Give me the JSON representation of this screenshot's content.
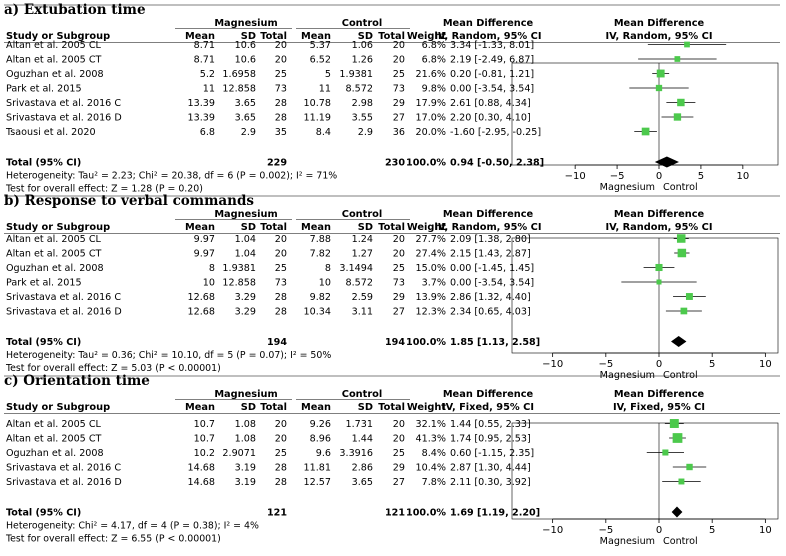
{
  "chart_data": [
    {
      "type": "forest",
      "title": "a) Extubation time",
      "group_labels": [
        "Magnesium",
        "Control"
      ],
      "columns": [
        "Study or Subgroup",
        "Mean",
        "SD",
        "Total",
        "Mean",
        "SD",
        "Total",
        "Weight",
        "Mean Difference",
        "Mean Difference"
      ],
      "md_header_line1": "Mean Difference",
      "md_header_line2": "IV, Random, 95% CI",
      "studies": [
        {
          "study": "Altan et al. 2005 CL",
          "mg_mean": "8.71",
          "mg_sd": "10.6",
          "mg_total": "20",
          "ctrl_mean": "5.37",
          "ctrl_sd": "1.06",
          "ctrl_total": "20",
          "weight": "6.8%",
          "ci_text": "3.34 [-1.33, 8.01]",
          "md": 3.34,
          "lo": -1.33,
          "hi": 8.01,
          "w": 6.8
        },
        {
          "study": "Altan et al. 2005 CT",
          "mg_mean": "8.71",
          "mg_sd": "10.6",
          "mg_total": "20",
          "ctrl_mean": "6.52",
          "ctrl_sd": "1.26",
          "ctrl_total": "20",
          "weight": "6.8%",
          "ci_text": "2.19 [-2.49, 6.87]",
          "md": 2.19,
          "lo": -2.49,
          "hi": 6.87,
          "w": 6.8
        },
        {
          "study": "Oguzhan et al. 2008",
          "mg_mean": "5.2",
          "mg_sd": "1.6958",
          "mg_total": "25",
          "ctrl_mean": "5",
          "ctrl_sd": "1.9381",
          "ctrl_total": "25",
          "weight": "21.6%",
          "ci_text": "0.20 [-0.81, 1.21]",
          "md": 0.2,
          "lo": -0.81,
          "hi": 1.21,
          "w": 21.6
        },
        {
          "study": "Park et al. 2015",
          "mg_mean": "11",
          "mg_sd": "12.858",
          "mg_total": "73",
          "ctrl_mean": "11",
          "ctrl_sd": "8.572",
          "ctrl_total": "73",
          "weight": "9.8%",
          "ci_text": "0.00 [-3.54, 3.54]",
          "md": 0.0,
          "lo": -3.54,
          "hi": 3.54,
          "w": 9.8
        },
        {
          "study": "Srivastava et al. 2016 C",
          "mg_mean": "13.39",
          "mg_sd": "3.65",
          "mg_total": "28",
          "ctrl_mean": "10.78",
          "ctrl_sd": "2.98",
          "ctrl_total": "29",
          "weight": "17.9%",
          "ci_text": "2.61 [0.88, 4.34]",
          "md": 2.61,
          "lo": 0.88,
          "hi": 4.34,
          "w": 17.9
        },
        {
          "study": "Srivastava et al. 2016 D",
          "mg_mean": "13.39",
          "mg_sd": "3.65",
          "mg_total": "28",
          "ctrl_mean": "11.19",
          "ctrl_sd": "3.55",
          "ctrl_total": "27",
          "weight": "17.0%",
          "ci_text": "2.20 [0.30, 4.10]",
          "md": 2.2,
          "lo": 0.3,
          "hi": 4.1,
          "w": 17.0
        },
        {
          "study": "Tsaousi et al. 2020",
          "mg_mean": "6.8",
          "mg_sd": "2.9",
          "mg_total": "35",
          "ctrl_mean": "8.4",
          "ctrl_sd": "2.9",
          "ctrl_total": "36",
          "weight": "20.0%",
          "ci_text": "-1.60 [-2.95, -0.25]",
          "md": -1.6,
          "lo": -2.95,
          "hi": -0.25,
          "w": 20.0
        }
      ],
      "total": {
        "label": "Total (95% CI)",
        "mg_total": "229",
        "ctrl_total": "230",
        "weight": "100.0%",
        "ci_text": "0.94 [-0.50, 2.38]",
        "md": 0.94,
        "lo": -0.5,
        "hi": 2.38
      },
      "heterogeneity": "Heterogeneity: Tau² = 2.23; Chi² = 20.38, df = 6 (P = 0.002); I² = 71%",
      "overall_effect": "Test for overall effect: Z = 1.28 (P = 0.20)",
      "xlim": [
        -13,
        13
      ],
      "xticks": [
        -10,
        -5,
        0,
        5,
        10
      ],
      "xtick_labels": [
        "−10",
        "−5",
        "0",
        "5",
        "10"
      ],
      "favours_left": "Magnesium",
      "favours_right": "Control"
    },
    {
      "type": "forest",
      "title": "b) Response to verbal commands",
      "group_labels": [
        "Magnesium",
        "Control"
      ],
      "columns": [
        "Study or Subgroup",
        "Mean",
        "SD",
        "Total",
        "Mean",
        "SD",
        "Total",
        "Weight",
        "Mean Difference",
        "Mean Difference"
      ],
      "md_header_line1": "Mean Difference",
      "md_header_line2": "IV, Random, 95% CI",
      "studies": [
        {
          "study": "Altan et al. 2005 CL",
          "mg_mean": "9.97",
          "mg_sd": "1.04",
          "mg_total": "20",
          "ctrl_mean": "7.88",
          "ctrl_sd": "1.24",
          "ctrl_total": "20",
          "weight": "27.7%",
          "ci_text": "2.09 [1.38, 2.80]",
          "md": 2.09,
          "lo": 1.38,
          "hi": 2.8,
          "w": 27.7
        },
        {
          "study": "Altan et al. 2005 CT",
          "mg_mean": "9.97",
          "mg_sd": "1.04",
          "mg_total": "20",
          "ctrl_mean": "7.82",
          "ctrl_sd": "1.27",
          "ctrl_total": "20",
          "weight": "27.4%",
          "ci_text": "2.15 [1.43, 2.87]",
          "md": 2.15,
          "lo": 1.43,
          "hi": 2.87,
          "w": 27.4
        },
        {
          "study": "Oguzhan et al. 2008",
          "mg_mean": "8",
          "mg_sd": "1.9381",
          "mg_total": "25",
          "ctrl_mean": "8",
          "ctrl_sd": "3.1494",
          "ctrl_total": "25",
          "weight": "15.0%",
          "ci_text": "0.00 [-1.45, 1.45]",
          "md": 0.0,
          "lo": -1.45,
          "hi": 1.45,
          "w": 15.0
        },
        {
          "study": "Park et al. 2015",
          "mg_mean": "10",
          "mg_sd": "12.858",
          "mg_total": "73",
          "ctrl_mean": "10",
          "ctrl_sd": "8.572",
          "ctrl_total": "73",
          "weight": "3.7%",
          "ci_text": "0.00 [-3.54, 3.54]",
          "md": 0.0,
          "lo": -3.54,
          "hi": 3.54,
          "w": 3.7
        },
        {
          "study": "Srivastava et al. 2016 C",
          "mg_mean": "12.68",
          "mg_sd": "3.29",
          "mg_total": "28",
          "ctrl_mean": "9.82",
          "ctrl_sd": "2.59",
          "ctrl_total": "29",
          "weight": "13.9%",
          "ci_text": "2.86 [1.32, 4.40]",
          "md": 2.86,
          "lo": 1.32,
          "hi": 4.4,
          "w": 13.9
        },
        {
          "study": "Srivastava et al. 2016 D",
          "mg_mean": "12.68",
          "mg_sd": "3.29",
          "mg_total": "28",
          "ctrl_mean": "10.34",
          "ctrl_sd": "3.11",
          "ctrl_total": "27",
          "weight": "12.3%",
          "ci_text": "2.34 [0.65, 4.03]",
          "md": 2.34,
          "lo": 0.65,
          "hi": 4.03,
          "w": 12.3
        }
      ],
      "total": {
        "label": "Total (95% CI)",
        "mg_total": "194",
        "ctrl_total": "194",
        "weight": "100.0%",
        "ci_text": "1.85 [1.13, 2.58]",
        "md": 1.85,
        "lo": 1.13,
        "hi": 2.58
      },
      "heterogeneity": "Heterogeneity: Tau² = 0.36; Chi² = 10.10, df = 5 (P = 0.07); I² = 50%",
      "overall_effect": "Test for overall effect: Z = 5.03 (P < 0.00001)",
      "xlim": [
        -11,
        11
      ],
      "xticks": [
        -10,
        -5,
        0,
        5,
        10
      ],
      "xtick_labels": [
        "−10",
        "−5",
        "0",
        "5",
        "10"
      ],
      "favours_left": "Magnesium",
      "favours_right": "Control"
    },
    {
      "type": "forest",
      "title": "c) Orientation time",
      "group_labels": [
        "Magnesium",
        "Control"
      ],
      "columns": [
        "Study or Subgroup",
        "Mean",
        "SD",
        "Total",
        "Mean",
        "SD",
        "Total",
        "Weight",
        "Mean Difference",
        "Mean Difference"
      ],
      "md_header_line1": "Mean Difference",
      "md_header_line2": "IV, Fixed, 95% CI",
      "studies": [
        {
          "study": "Altan et al. 2005 CL",
          "mg_mean": "10.7",
          "mg_sd": "1.08",
          "mg_total": "20",
          "ctrl_mean": "9.26",
          "ctrl_sd": "1.731",
          "ctrl_total": "20",
          "weight": "32.1%",
          "ci_text": "1.44 [0.55, 2.33]",
          "md": 1.44,
          "lo": 0.55,
          "hi": 2.33,
          "w": 32.1
        },
        {
          "study": "Altan et al. 2005 CT",
          "mg_mean": "10.7",
          "mg_sd": "1.08",
          "mg_total": "20",
          "ctrl_mean": "8.96",
          "ctrl_sd": "1.44",
          "ctrl_total": "20",
          "weight": "41.3%",
          "ci_text": "1.74 [0.95, 2.53]",
          "md": 1.74,
          "lo": 0.95,
          "hi": 2.53,
          "w": 41.3
        },
        {
          "study": "Oguzhan et al. 2008",
          "mg_mean": "10.2",
          "mg_sd": "2.9071",
          "mg_total": "25",
          "ctrl_mean": "9.6",
          "ctrl_sd": "3.3916",
          "ctrl_total": "25",
          "weight": "8.4%",
          "ci_text": "0.60 [-1.15, 2.35]",
          "md": 0.6,
          "lo": -1.15,
          "hi": 2.35,
          "w": 8.4
        },
        {
          "study": "Srivastava et al. 2016 C",
          "mg_mean": "14.68",
          "mg_sd": "3.19",
          "mg_total": "28",
          "ctrl_mean": "11.81",
          "ctrl_sd": "2.86",
          "ctrl_total": "29",
          "weight": "10.4%",
          "ci_text": "2.87 [1.30, 4.44]",
          "md": 2.87,
          "lo": 1.3,
          "hi": 4.44,
          "w": 10.4
        },
        {
          "study": "Srivastava et al. 2016 D",
          "mg_mean": "14.68",
          "mg_sd": "3.19",
          "mg_total": "28",
          "ctrl_mean": "12.57",
          "ctrl_sd": "3.65",
          "ctrl_total": "27",
          "weight": "7.8%",
          "ci_text": "2.11 [0.30, 3.92]",
          "md": 2.11,
          "lo": 0.3,
          "hi": 3.92,
          "w": 7.8
        }
      ],
      "total": {
        "label": "Total (95% CI)",
        "mg_total": "121",
        "ctrl_total": "121",
        "weight": "100.0%",
        "ci_text": "1.69 [1.19, 2.20]",
        "md": 1.69,
        "lo": 1.19,
        "hi": 2.2
      },
      "heterogeneity": "Heterogeneity: Chi² = 4.17, df = 4 (P = 0.38); I² = 4%",
      "overall_effect": "Test for overall effect: Z = 6.55 (P < 0.00001)",
      "xlim": [
        -11,
        11
      ],
      "xticks": [
        -10,
        -5,
        0,
        5,
        10
      ],
      "xtick_labels": [
        "−10",
        "−5",
        "0",
        "5",
        "10"
      ],
      "favours_left": "Magnesium",
      "favours_right": "Control"
    }
  ],
  "colors": {
    "marker": "#4cc94c",
    "line": "#000000"
  }
}
